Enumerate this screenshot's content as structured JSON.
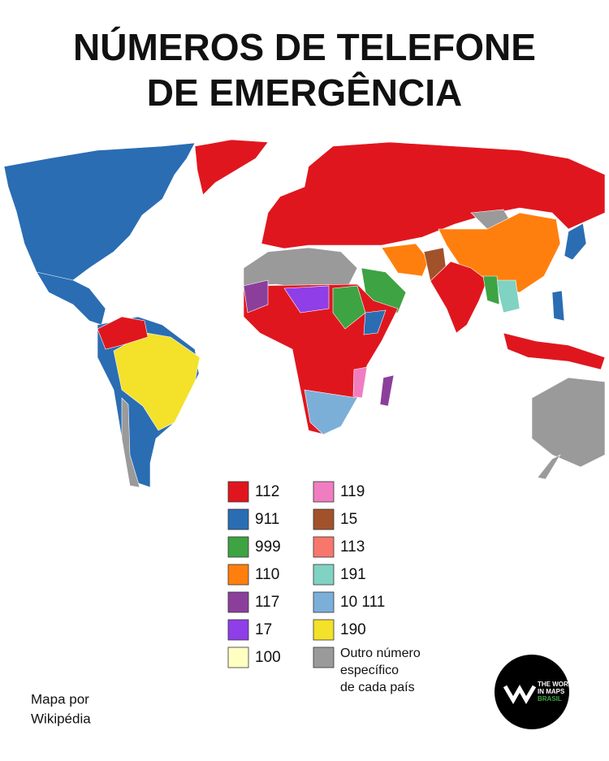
{
  "title": {
    "lines": [
      "NÚMEROS DE TELEFONE",
      "DE EMERGÊNCIA"
    ]
  },
  "legend": {
    "items": [
      {
        "label": [
          "112"
        ],
        "color": "#e0161e"
      },
      {
        "label": [
          "911"
        ],
        "color": "#2a6db3"
      },
      {
        "label": [
          "999"
        ],
        "color": "#3ea343"
      },
      {
        "label": [
          "110"
        ],
        "color": "#ff7f0e"
      },
      {
        "label": [
          "117"
        ],
        "color": "#8b3f9b"
      },
      {
        "label": [
          "17"
        ],
        "color": "#8f3ee8"
      },
      {
        "label": [
          "100"
        ],
        "color": "#ffffc2"
      },
      {
        "label": [
          "119"
        ],
        "color": "#f07dc0"
      },
      {
        "label": [
          "15"
        ],
        "color": "#a2522b"
      },
      {
        "label": [
          "113"
        ],
        "color": "#f7776c"
      },
      {
        "label": [
          "191"
        ],
        "color": "#80d2c2"
      },
      {
        "label": [
          "10 111"
        ],
        "color": "#7cafd8"
      },
      {
        "label": [
          "190"
        ],
        "color": "#f3e12a"
      },
      {
        "label": [
          "Outro número",
          "específico",
          "de cada país"
        ],
        "color": "#9a9a9a"
      }
    ]
  },
  "credit": {
    "lines": [
      "Mapa por",
      "Wikipédia"
    ]
  },
  "logo": {
    "lines": [
      "THE WORLD",
      "IN MAPS",
      "BRASIL"
    ]
  }
}
